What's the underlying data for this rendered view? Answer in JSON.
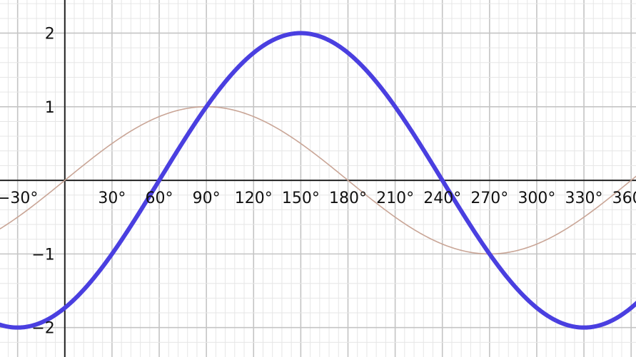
{
  "chart_data": {
    "type": "line",
    "title": "",
    "xlabel": "",
    "ylabel": "",
    "xlim": [
      -41.2,
      363.1
    ],
    "ylim": [
      -2.4,
      2.45
    ],
    "grid": true,
    "legend": "none",
    "x_ticks": [
      {
        "value": -30,
        "label": "−30°"
      },
      {
        "value": 30,
        "label": "30°"
      },
      {
        "value": 60,
        "label": "60°"
      },
      {
        "value": 90,
        "label": "90°"
      },
      {
        "value": 120,
        "label": "120°"
      },
      {
        "value": 150,
        "label": "150°"
      },
      {
        "value": 180,
        "label": "180°"
      },
      {
        "value": 210,
        "label": "210°"
      },
      {
        "value": 240,
        "label": "240°"
      },
      {
        "value": 270,
        "label": "270°"
      },
      {
        "value": 300,
        "label": "300°"
      },
      {
        "value": 330,
        "label": "330°"
      },
      {
        "value": 360,
        "label": "360°"
      }
    ],
    "y_ticks": [
      {
        "value": 2,
        "label": "2"
      },
      {
        "value": 1,
        "label": "1"
      },
      {
        "value": -1,
        "label": "−1"
      },
      {
        "value": -2,
        "label": "−2"
      }
    ],
    "series": [
      {
        "color": "#c9a596",
        "x": [
          -45,
          -30,
          0,
          30,
          60,
          90,
          120,
          150,
          180,
          210,
          240,
          270,
          300,
          330,
          360,
          370
        ],
        "values": [
          -0.71,
          -0.5,
          0,
          0.5,
          0.87,
          1,
          0.87,
          0.5,
          0,
          -0.5,
          -0.87,
          -1,
          -0.87,
          -0.5,
          0,
          0.17
        ]
      },
      {
        "color": "#4a3fe0",
        "x": [
          -45,
          -30,
          0,
          30,
          60,
          90,
          120,
          150,
          180,
          210,
          240,
          270,
          300,
          330,
          360,
          370
        ],
        "values": [
          -1.93,
          -2,
          -1.73,
          -1,
          0,
          1,
          1.73,
          2,
          1.73,
          1,
          0,
          -1,
          -1.73,
          -2,
          -1.73,
          -1.53
        ]
      }
    ]
  }
}
